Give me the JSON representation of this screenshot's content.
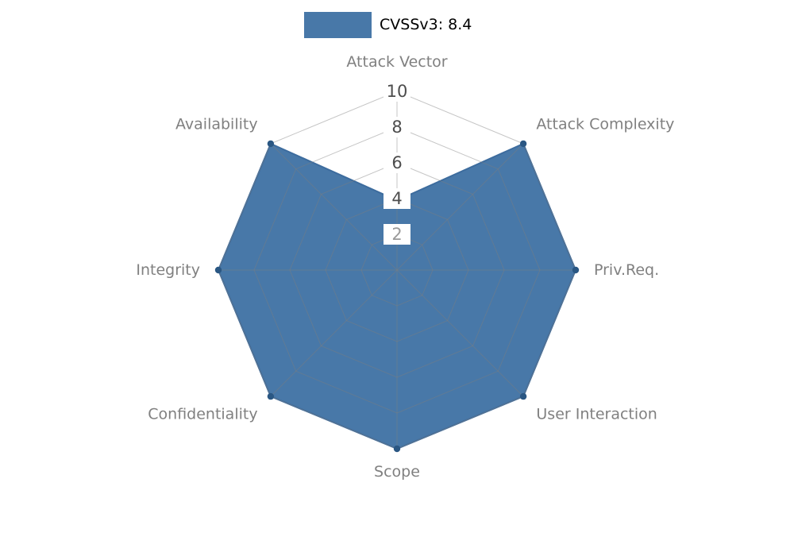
{
  "legend": {
    "label": "CVSSv3: 8.4",
    "swatch_color": "#4878a8"
  },
  "chart_data": {
    "type": "radar",
    "title": "",
    "categories": [
      "Attack Vector",
      "Attack Complexity",
      "Priv.Req.",
      "User Interaction",
      "Scope",
      "Confidentiality",
      "Integrity",
      "Availability"
    ],
    "series": [
      {
        "name": "CVSSv3: 8.4",
        "values": [
          3.9,
          10,
          10,
          10,
          10,
          10,
          10,
          10
        ]
      }
    ],
    "radial_ticks": [
      2,
      4,
      6,
      8,
      10
    ],
    "rlim": [
      0,
      10
    ],
    "grid": true,
    "legend_position": "top-center",
    "colors": {
      "fill": "#4878a8",
      "stroke": "#3d6c9e",
      "marker": "#2a5783",
      "grid": "#7f7f7f",
      "label": "#808080",
      "tick": "#4d4d4d",
      "tick_low": "#9a9a9a",
      "tick_box": "#ffffff"
    }
  }
}
